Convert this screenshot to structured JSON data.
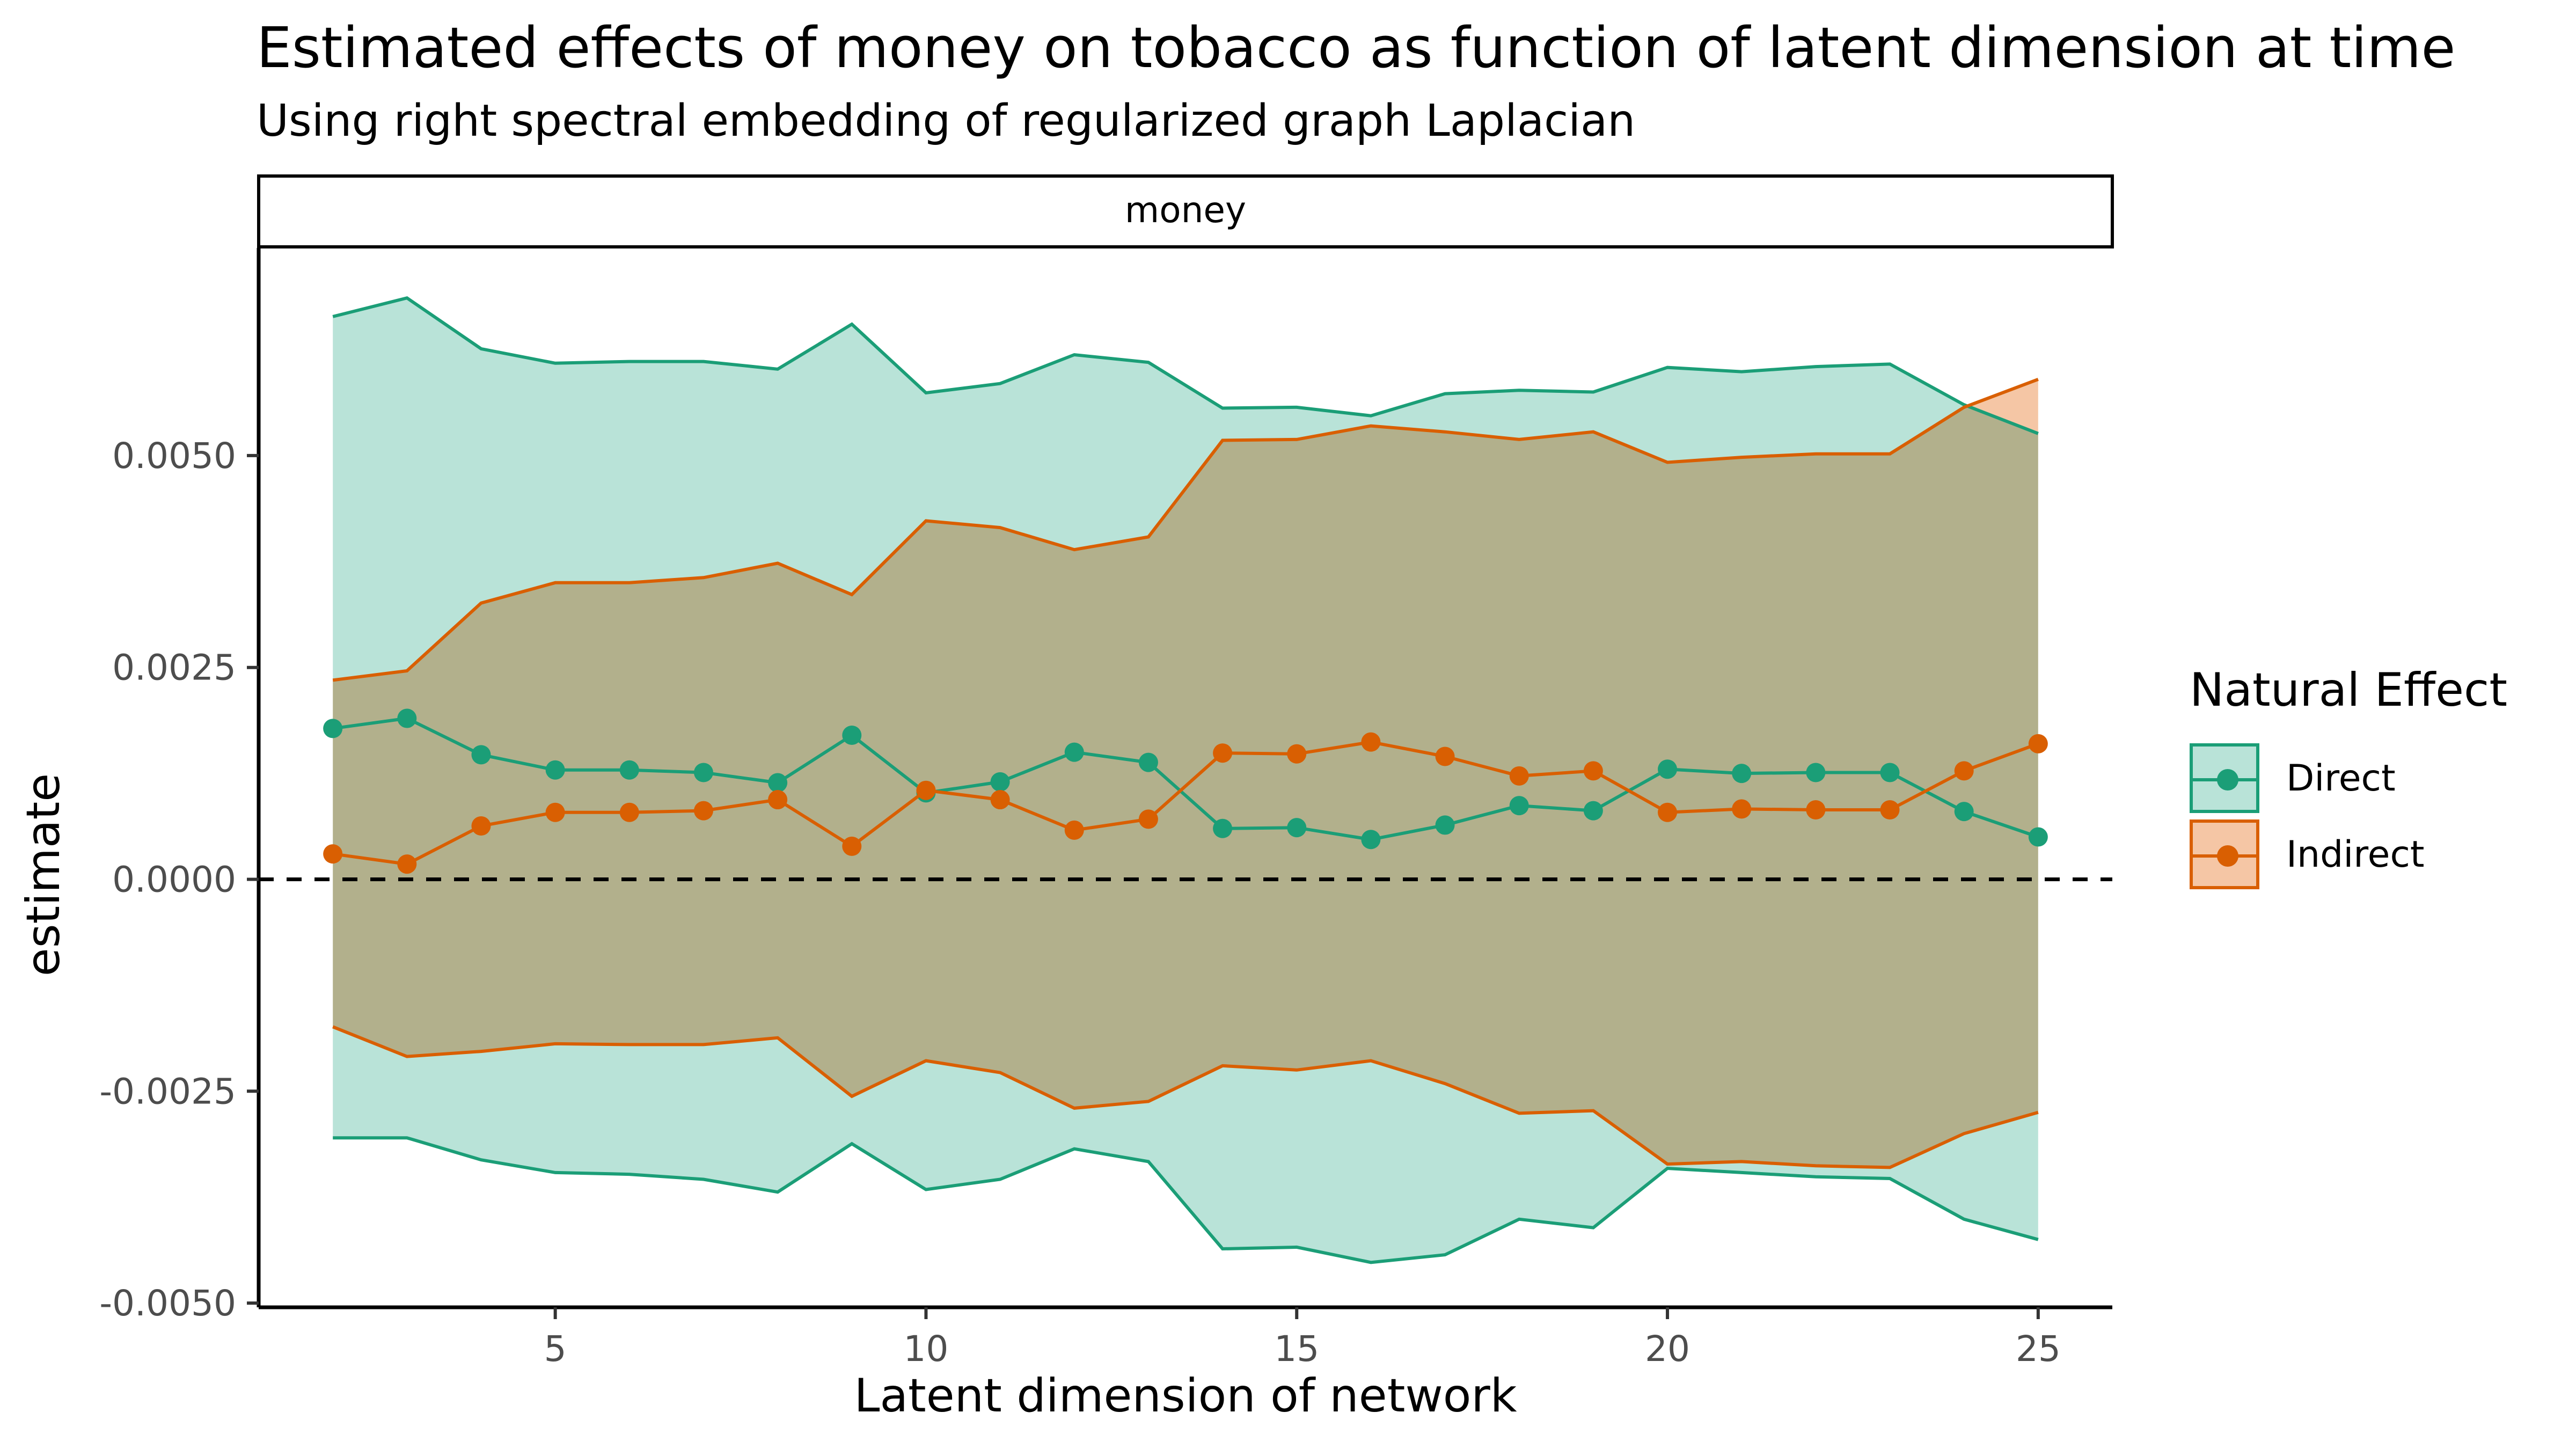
{
  "title": "Estimated effects of money on tobacco as function of latent dimension at time",
  "subtitle": "Using right spectral embedding of regularized graph Laplacian",
  "chart_data": {
    "type": "line",
    "title": "Estimated effects of money on tobacco as function of latent dimension at time",
    "subtitle": "Using right spectral embedding of regularized graph Laplacian",
    "facet_label": "money",
    "xlabel": "Latent dimension of network",
    "ylabel": "estimate",
    "x": [
      2,
      3,
      4,
      5,
      6,
      7,
      8,
      9,
      10,
      11,
      12,
      13,
      14,
      15,
      16,
      17,
      18,
      19,
      20,
      21,
      22,
      23,
      24,
      25
    ],
    "xlim": [
      1,
      26
    ],
    "ylim": [
      -0.00505,
      0.00745
    ],
    "xticks": [
      5,
      10,
      15,
      20,
      25
    ],
    "yticks": [
      -0.005,
      -0.0025,
      0,
      0.0025,
      0.005
    ],
    "ytick_labels": [
      "-0.0050",
      "-0.0025",
      "0.0000",
      "0.0025",
      "0.0050"
    ],
    "reference_line": 0,
    "grid": false,
    "legend": {
      "title": "Natural Effect",
      "position": "right"
    },
    "series": [
      {
        "name": "Direct",
        "color": "#1b9e77",
        "fill": "#b9e3d8",
        "estimate": [
          0.00178,
          0.0019,
          0.00147,
          0.00129,
          0.00129,
          0.00126,
          0.00114,
          0.0017,
          0.00102,
          0.00115,
          0.0015,
          0.00138,
          0.0006,
          0.00061,
          0.00047,
          0.00064,
          0.00087,
          0.00081,
          0.0013,
          0.00125,
          0.00126,
          0.00126,
          0.0008,
          0.0005
        ],
        "upper": [
          0.00664,
          0.00686,
          0.00626,
          0.00609,
          0.00611,
          0.00611,
          0.00602,
          0.00655,
          0.00574,
          0.00585,
          0.00619,
          0.0061,
          0.00556,
          0.00557,
          0.00547,
          0.00573,
          0.00577,
          0.00575,
          0.00604,
          0.00599,
          0.00605,
          0.00608,
          0.0056,
          0.00526
        ],
        "lower": [
          -0.00305,
          -0.00305,
          -0.00331,
          -0.00346,
          -0.00348,
          -0.00354,
          -0.00369,
          -0.00312,
          -0.00366,
          -0.00354,
          -0.00318,
          -0.00333,
          -0.00436,
          -0.00434,
          -0.00452,
          -0.00443,
          -0.00401,
          -0.00411,
          -0.00341,
          -0.00346,
          -0.00351,
          -0.00353,
          -0.00401,
          -0.00425
        ]
      },
      {
        "name": "Indirect",
        "color": "#d95f02",
        "fill": "#f5c6a5",
        "estimate": [
          0.0003,
          0.00018,
          0.00063,
          0.00079,
          0.00079,
          0.00081,
          0.00094,
          0.00039,
          0.00105,
          0.00094,
          0.00058,
          0.00071,
          0.00149,
          0.00148,
          0.00162,
          0.00145,
          0.00122,
          0.00128,
          0.00079,
          0.00083,
          0.00082,
          0.00082,
          0.00128,
          0.0016
        ],
        "upper": [
          0.00235,
          0.00246,
          0.00326,
          0.0035,
          0.0035,
          0.00356,
          0.00373,
          0.00336,
          0.00423,
          0.00415,
          0.00389,
          0.00404,
          0.00518,
          0.00519,
          0.00535,
          0.00528,
          0.00519,
          0.00528,
          0.00492,
          0.00498,
          0.00502,
          0.00502,
          0.00557,
          0.0059
        ],
        "lower": [
          -0.00174,
          -0.00209,
          -0.00203,
          -0.00194,
          -0.00195,
          -0.00195,
          -0.00187,
          -0.00256,
          -0.00214,
          -0.00228,
          -0.0027,
          -0.00262,
          -0.0022,
          -0.00225,
          -0.00214,
          -0.00241,
          -0.00276,
          -0.00273,
          -0.00336,
          -0.00333,
          -0.00338,
          -0.0034,
          -0.003,
          -0.00275
        ]
      }
    ]
  }
}
